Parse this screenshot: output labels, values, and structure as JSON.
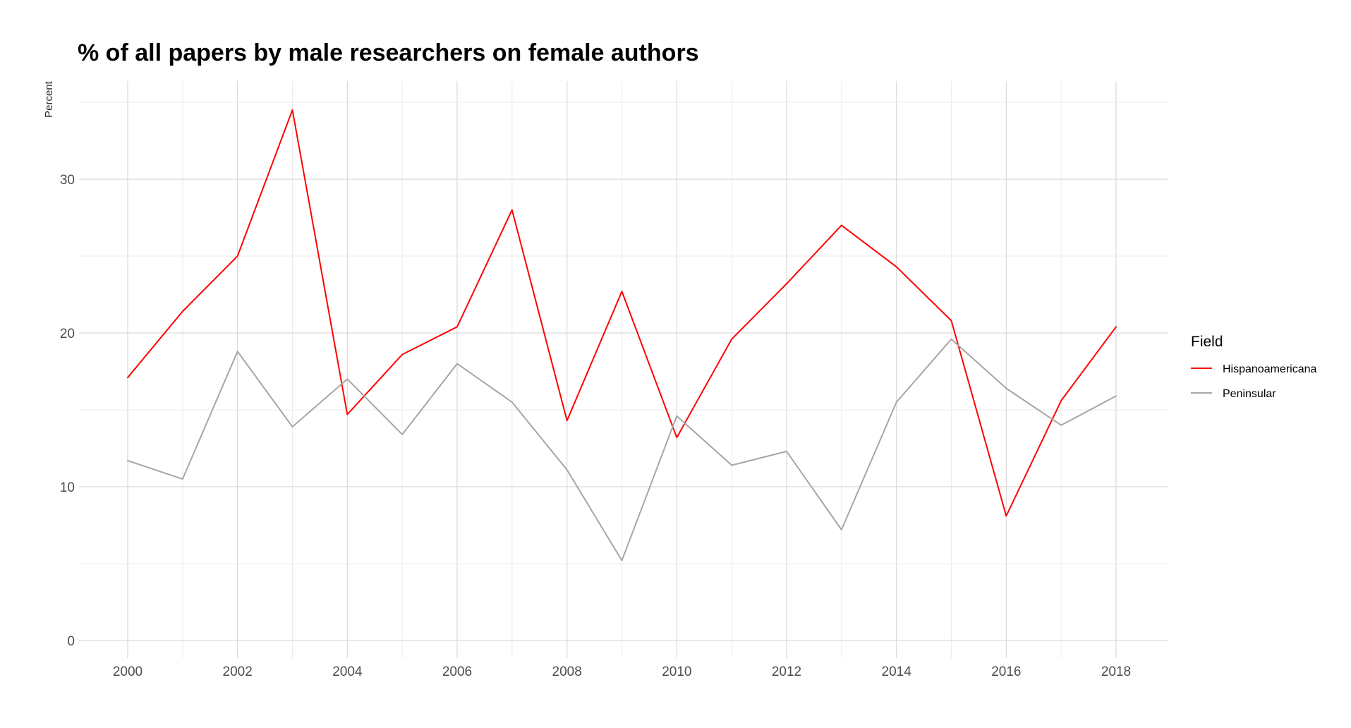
{
  "chart_data": {
    "type": "line",
    "title": "% of all papers by male researchers on female authors",
    "xlabel": "",
    "ylabel": "Percent",
    "x": [
      2000,
      2001,
      2002,
      2003,
      2004,
      2005,
      2006,
      2007,
      2008,
      2009,
      2010,
      2011,
      2012,
      2013,
      2014,
      2015,
      2016,
      2017,
      2018
    ],
    "xlim": [
      2000,
      2018
    ],
    "ylim": [
      0,
      35
    ],
    "x_ticks": [
      "2000",
      "2002",
      "2004",
      "2006",
      "2008",
      "2010",
      "2012",
      "2014",
      "2016",
      "2018"
    ],
    "y_ticks": [
      "0",
      "10",
      "20",
      "30"
    ],
    "grid": true,
    "legend": {
      "title": "Field",
      "placement": "right"
    },
    "series": [
      {
        "name": "Hispanoamericana",
        "color": "#ff0000",
        "values": [
          17.1,
          21.4,
          25.0,
          34.5,
          14.7,
          18.6,
          20.4,
          28.0,
          14.3,
          22.7,
          13.2,
          19.6,
          23.2,
          27.0,
          24.3,
          20.8,
          8.1,
          15.6,
          20.4
        ]
      },
      {
        "name": "Peninsular",
        "color": "#a6a6a6",
        "values": [
          11.7,
          10.5,
          18.8,
          13.9,
          17.0,
          13.4,
          18.0,
          15.5,
          11.1,
          5.2,
          14.6,
          11.4,
          12.3,
          7.2,
          15.5,
          19.6,
          16.4,
          14.0,
          15.9
        ]
      }
    ]
  }
}
